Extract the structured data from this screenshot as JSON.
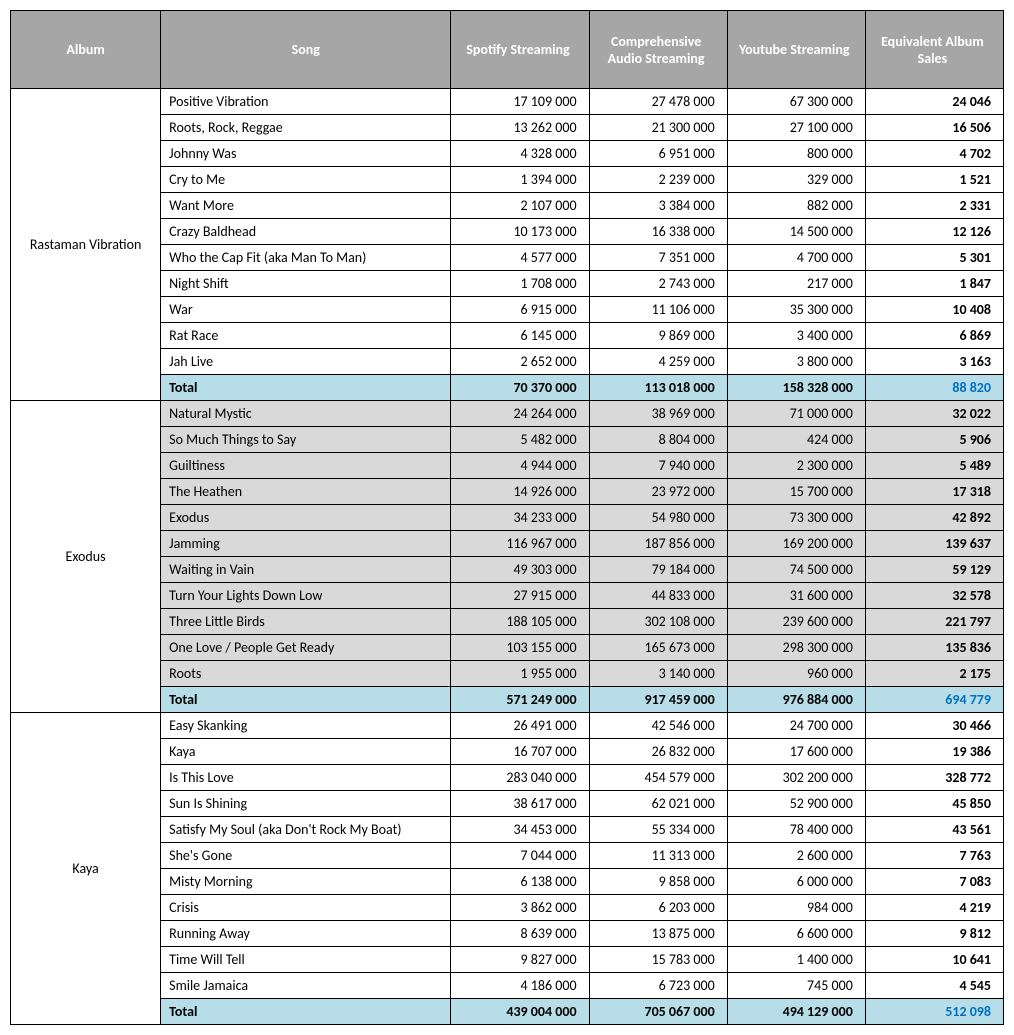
{
  "headers": {
    "album": "Album",
    "song": "Song",
    "spotify": "Spotify Streaming",
    "comprehensive": "Comprehensive Audio Streaming",
    "youtube": "Youtube Streaming",
    "eas": "Equivalent Album Sales"
  },
  "colors": {
    "header_bg": "#a6a6a6",
    "header_text": "#ffffff",
    "total_bg": "#b7dee8",
    "total_eas_text": "#0070c0",
    "group_even_bg": "#d9d9d9",
    "group_odd_bg": "#ffffff",
    "border": "#000000"
  },
  "albums": [
    {
      "name": "Rastaman Vibration",
      "songs": [
        {
          "title": "Positive Vibration",
          "spotify": "17 109 000",
          "comp": "27 478 000",
          "youtube": "67 300 000",
          "eas": "24 046"
        },
        {
          "title": "Roots, Rock, Reggae",
          "spotify": "13 262 000",
          "comp": "21 300 000",
          "youtube": "27 100 000",
          "eas": "16 506"
        },
        {
          "title": "Johnny Was",
          "spotify": "4 328 000",
          "comp": "6 951 000",
          "youtube": "800 000",
          "eas": "4 702"
        },
        {
          "title": "Cry to Me",
          "spotify": "1 394 000",
          "comp": "2 239 000",
          "youtube": "329 000",
          "eas": "1 521"
        },
        {
          "title": "Want More",
          "spotify": "2 107 000",
          "comp": "3 384 000",
          "youtube": "882 000",
          "eas": "2 331"
        },
        {
          "title": "Crazy Baldhead",
          "spotify": "10 173 000",
          "comp": "16 338 000",
          "youtube": "14 500 000",
          "eas": "12 126"
        },
        {
          "title": "Who the Cap Fit (aka Man To Man)",
          "spotify": "4 577 000",
          "comp": "7 351 000",
          "youtube": "4 700 000",
          "eas": "5 301"
        },
        {
          "title": "Night Shift",
          "spotify": "1 708 000",
          "comp": "2 743 000",
          "youtube": "217 000",
          "eas": "1 847"
        },
        {
          "title": "War",
          "spotify": "6 915 000",
          "comp": "11 106 000",
          "youtube": "35 300 000",
          "eas": "10 408"
        },
        {
          "title": "Rat Race",
          "spotify": "6 145 000",
          "comp": "9 869 000",
          "youtube": "3 400 000",
          "eas": "6 869"
        },
        {
          "title": "Jah Live",
          "spotify": "2 652 000",
          "comp": "4 259 000",
          "youtube": "3 800 000",
          "eas": "3 163"
        }
      ],
      "total": {
        "label": "Total",
        "spotify": "70 370 000",
        "comp": "113 018 000",
        "youtube": "158 328 000",
        "eas": "88 820"
      }
    },
    {
      "name": "Exodus",
      "songs": [
        {
          "title": "Natural Mystic",
          "spotify": "24 264 000",
          "comp": "38 969 000",
          "youtube": "71 000 000",
          "eas": "32 022"
        },
        {
          "title": "So Much Things to Say",
          "spotify": "5 482 000",
          "comp": "8 804 000",
          "youtube": "424 000",
          "eas": "5 906"
        },
        {
          "title": "Guiltiness",
          "spotify": "4 944 000",
          "comp": "7 940 000",
          "youtube": "2 300 000",
          "eas": "5 489"
        },
        {
          "title": "The Heathen",
          "spotify": "14 926 000",
          "comp": "23 972 000",
          "youtube": "15 700 000",
          "eas": "17 318"
        },
        {
          "title": "Exodus",
          "spotify": "34 233 000",
          "comp": "54 980 000",
          "youtube": "73 300 000",
          "eas": "42 892"
        },
        {
          "title": "Jamming",
          "spotify": "116 967 000",
          "comp": "187 856 000",
          "youtube": "169 200 000",
          "eas": "139 637"
        },
        {
          "title": "Waiting in Vain",
          "spotify": "49 303 000",
          "comp": "79 184 000",
          "youtube": "74 500 000",
          "eas": "59 129"
        },
        {
          "title": "Turn Your Lights Down Low",
          "spotify": "27 915 000",
          "comp": "44 833 000",
          "youtube": "31 600 000",
          "eas": "32 578"
        },
        {
          "title": "Three Little Birds",
          "spotify": "188 105 000",
          "comp": "302 108 000",
          "youtube": "239 600 000",
          "eas": "221 797"
        },
        {
          "title": "One Love / People Get Ready",
          "spotify": "103 155 000",
          "comp": "165 673 000",
          "youtube": "298 300 000",
          "eas": "135 836"
        },
        {
          "title": "Roots",
          "spotify": "1 955 000",
          "comp": "3 140 000",
          "youtube": "960 000",
          "eas": "2 175"
        }
      ],
      "total": {
        "label": "Total",
        "spotify": "571 249 000",
        "comp": "917 459 000",
        "youtube": "976 884 000",
        "eas": "694 779"
      }
    },
    {
      "name": "Kaya",
      "songs": [
        {
          "title": "Easy Skanking",
          "spotify": "26 491 000",
          "comp": "42 546 000",
          "youtube": "24 700 000",
          "eas": "30 466"
        },
        {
          "title": "Kaya",
          "spotify": "16 707 000",
          "comp": "26 832 000",
          "youtube": "17 600 000",
          "eas": "19 386"
        },
        {
          "title": "Is This Love",
          "spotify": "283 040 000",
          "comp": "454 579 000",
          "youtube": "302 200 000",
          "eas": "328 772"
        },
        {
          "title": "Sun Is Shining",
          "spotify": "38 617 000",
          "comp": "62 021 000",
          "youtube": "52 900 000",
          "eas": "45 850"
        },
        {
          "title": "Satisfy My Soul (aka Don't Rock My Boat)",
          "spotify": "34 453 000",
          "comp": "55 334 000",
          "youtube": "78 400 000",
          "eas": "43 561"
        },
        {
          "title": "She's Gone",
          "spotify": "7 044 000",
          "comp": "11 313 000",
          "youtube": "2 600 000",
          "eas": "7 763"
        },
        {
          "title": "Misty Morning",
          "spotify": "6 138 000",
          "comp": "9 858 000",
          "youtube": "6 000 000",
          "eas": "7 083"
        },
        {
          "title": "Crisis",
          "spotify": "3 862 000",
          "comp": "6 203 000",
          "youtube": "984 000",
          "eas": "4 219"
        },
        {
          "title": "Running Away",
          "spotify": "8 639 000",
          "comp": "13 875 000",
          "youtube": "6 600 000",
          "eas": "9 812"
        },
        {
          "title": "Time Will Tell",
          "spotify": "9 827 000",
          "comp": "15 783 000",
          "youtube": "1 400 000",
          "eas": "10 641"
        },
        {
          "title": "Smile Jamaica",
          "spotify": "4 186 000",
          "comp": "6 723 000",
          "youtube": "745 000",
          "eas": "4 545"
        }
      ],
      "total": {
        "label": "Total",
        "spotify": "439 004 000",
        "comp": "705 067 000",
        "youtube": "494 129 000",
        "eas": "512 098"
      }
    }
  ]
}
